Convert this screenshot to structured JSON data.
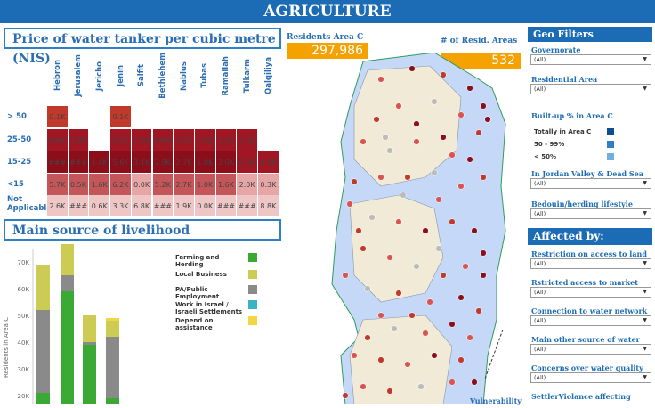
{
  "header": {
    "title": "AGRICULTURE"
  },
  "price_section": {
    "title": "Price of water tanker per cubic metre (NIS)"
  },
  "price_table": {
    "columns": [
      "Hebron",
      "Jerusalem",
      "Jericho",
      "Jenin",
      "Salfit",
      "Bethlehem",
      "Nablus",
      "Tubas",
      "Ramallah",
      "Tulkarm",
      "Qalqiliya"
    ],
    "rows": [
      {
        "label": "> 50",
        "cells": [
          "0.1K",
          "",
          "",
          "0.1K",
          "",
          "",
          "",
          "",
          "",
          "",
          ""
        ]
      },
      {
        "label": "25-50",
        "cells": [
          "###",
          "1.8K",
          "",
          "5.6K",
          "1.9K",
          "###",
          "2.2K",
          "0.6K",
          "1.9K",
          "1.3K",
          ""
        ]
      },
      {
        "label": "15-25",
        "cells": [
          "###",
          "###",
          "1.4K",
          "5.6K",
          "3.1K",
          "2.8K",
          "2.7K",
          "1.0K",
          "2.0K",
          "0.8K",
          "0.6K"
        ]
      },
      {
        "label": "<15",
        "cells": [
          "5.7K",
          "0.5K",
          "1.6K",
          "6.2K",
          "0.0K",
          "5.2K",
          "2.7K",
          "1.0K",
          "1.6K",
          "2.0K",
          "0.3K"
        ]
      },
      {
        "label": "Not Applicable",
        "cells": [
          "2.6K",
          "###",
          "0.6K",
          "3.3K",
          "6.8K",
          "###",
          "1.9K",
          "0.0K",
          "###",
          "###",
          "8.8K"
        ]
      }
    ]
  },
  "livelihood_section": {
    "title": "Main source of livelihood"
  },
  "chart_data": {
    "type": "bar",
    "ylabel": "Residents in Area C",
    "y_ticks": [
      "70K",
      "60K",
      "50K",
      "40K",
      "30K",
      "20K"
    ],
    "series": [
      {
        "name": "Farming and Herding",
        "color": "#3aaa35"
      },
      {
        "name": "Local Business",
        "color": "#cccc55"
      },
      {
        "name": "PA/Public Employment",
        "color": "#8a8a8a"
      },
      {
        "name": "Work in Israel / Israeli Settlements",
        "color": "#3bb3c3"
      },
      {
        "name": "Depend on assistance",
        "color": "#f2d643"
      }
    ],
    "stacks": [
      {
        "Work in Israel / Israeli Settlements": 1,
        "Farming and Herding": 8,
        "PA/Public Employment": 31,
        "Local Business": 17
      },
      {
        "Farming and Herding": 47,
        "PA/Public Employment": 6,
        "Local Business": 12
      },
      {
        "Farming and Herding": 27,
        "PA/Public Employment": 1,
        "Local Business": 10
      },
      {
        "Farming and Herding": 7,
        "PA/Public Employment": 23,
        "Local Business": 6,
        "Depend on assistance": 1
      },
      {
        "Farming and Herding": 2,
        "PA/Public Employment": 2,
        "Local Business": 1
      },
      {
        "Local Business": 2
      }
    ]
  },
  "kpis": {
    "residents_label": "Residents Area C",
    "residents_value": "297,986",
    "areas_label": "# of Resid. Areas",
    "areas_value": "532"
  },
  "map": {
    "caption": "Vulnerability"
  },
  "geo_filters": {
    "title": "Geo Filters",
    "governorate": {
      "label": "Governorate",
      "value": "(All)"
    },
    "residential": {
      "label": "Residential Area",
      "value": "(All)"
    },
    "builtup": {
      "label": "Built-up % in Area C",
      "legend": [
        {
          "label": "Totally in Area C",
          "color": "#0d4f8c"
        },
        {
          "label": "50 - 99%",
          "color": "#2f7fc4"
        },
        {
          "label": "< 50%",
          "color": "#6fb0de"
        }
      ]
    },
    "jordan": {
      "label": "In Jordan Valley & Dead Sea",
      "value": "(All)"
    },
    "bedouin": {
      "label": "Bedouin/herding lifestyle",
      "value": "(All)"
    }
  },
  "affected": {
    "title": "Affected by:",
    "filters": [
      {
        "label": "Restriction on access to land",
        "value": "(All)"
      },
      {
        "label": "Rstricted   access to market",
        "value": "(All)"
      },
      {
        "label": "Connection to water network",
        "value": "(All)"
      },
      {
        "label": "Main other source of water",
        "value": "(All)"
      },
      {
        "label": "Concerns over water quality",
        "value": "(All)"
      },
      {
        "label": "SettlerViolance affecting",
        "value": ""
      }
    ]
  }
}
